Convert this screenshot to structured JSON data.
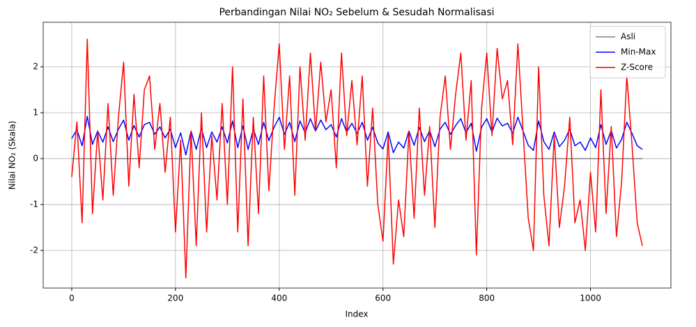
{
  "chart_data": {
    "type": "line",
    "title": "Perbandingan Nilai NO₂ Sebelum & Sesudah Normalisasi",
    "xlabel": "Index",
    "ylabel": "Nilai NO₂ (Skala)",
    "x": [
      0,
      10,
      20,
      30,
      40,
      50,
      60,
      70,
      80,
      90,
      100,
      110,
      120,
      130,
      140,
      150,
      160,
      170,
      180,
      190,
      200,
      210,
      220,
      230,
      240,
      250,
      260,
      270,
      280,
      290,
      300,
      310,
      320,
      330,
      340,
      350,
      360,
      370,
      380,
      390,
      400,
      410,
      420,
      430,
      440,
      450,
      460,
      470,
      480,
      490,
      500,
      510,
      520,
      530,
      540,
      550,
      560,
      570,
      580,
      590,
      600,
      610,
      620,
      630,
      640,
      650,
      660,
      670,
      680,
      690,
      700,
      710,
      720,
      730,
      740,
      750,
      760,
      770,
      780,
      790,
      800,
      810,
      820,
      830,
      840,
      850,
      860,
      870,
      880,
      890,
      900,
      910,
      920,
      930,
      940,
      950,
      960,
      970,
      980,
      990,
      1000,
      1010,
      1020,
      1030,
      1040,
      1050,
      1060,
      1070,
      1080,
      1090,
      1100
    ],
    "series": [
      {
        "name": "Asli",
        "color": "#808080",
        "values": [
          0,
          0,
          0,
          0,
          0,
          0,
          0,
          0,
          0,
          0,
          0,
          0,
          0,
          0,
          0,
          0,
          0,
          0,
          0,
          0,
          0,
          0,
          0,
          0,
          0,
          0,
          0,
          0,
          0,
          0,
          0,
          0,
          0,
          0,
          0,
          0,
          0,
          0,
          0,
          0,
          0,
          0,
          0,
          0,
          0,
          0,
          0,
          0,
          0,
          0,
          0,
          0,
          0,
          0,
          0,
          0,
          0,
          0,
          0,
          0,
          0,
          0,
          0,
          0,
          0,
          0,
          0,
          0,
          0,
          0,
          0,
          0,
          0,
          0,
          0,
          0,
          0,
          0,
          0,
          0,
          0,
          0,
          0,
          0,
          0,
          0,
          0,
          0,
          0,
          0,
          0,
          0,
          0,
          0,
          0,
          0,
          0,
          0,
          0,
          0,
          0,
          0,
          0,
          0,
          0,
          0,
          0,
          0,
          0,
          0,
          0
        ]
      },
      {
        "name": "Min-Max",
        "color": "#0000ff",
        "values": [
          0.44,
          0.63,
          0.28,
          0.92,
          0.31,
          0.6,
          0.36,
          0.69,
          0.37,
          0.64,
          0.84,
          0.4,
          0.72,
          0.47,
          0.74,
          0.79,
          0.53,
          0.69,
          0.45,
          0.64,
          0.24,
          0.56,
          0.08,
          0.6,
          0.2,
          0.66,
          0.24,
          0.58,
          0.36,
          0.69,
          0.34,
          0.82,
          0.24,
          0.71,
          0.2,
          0.64,
          0.31,
          0.79,
          0.39,
          0.68,
          0.9,
          0.53,
          0.79,
          0.37,
          0.82,
          0.56,
          0.87,
          0.6,
          0.84,
          0.63,
          0.74,
          0.47,
          0.87,
          0.58,
          0.77,
          0.55,
          0.79,
          0.4,
          0.68,
          0.34,
          0.21,
          0.58,
          0.13,
          0.36,
          0.23,
          0.6,
          0.29,
          0.68,
          0.37,
          0.61,
          0.26,
          0.64,
          0.79,
          0.53,
          0.72,
          0.87,
          0.56,
          0.77,
          0.16,
          0.68,
          0.87,
          0.58,
          0.88,
          0.71,
          0.77,
          0.55,
          0.9,
          0.6,
          0.29,
          0.18,
          0.82,
          0.37,
          0.2,
          0.58,
          0.26,
          0.4,
          0.64,
          0.28,
          0.36,
          0.18,
          0.45,
          0.24,
          0.74,
          0.31,
          0.61,
          0.23,
          0.42,
          0.79,
          0.55,
          0.28,
          0.2
        ]
      },
      {
        "name": "Z-Score",
        "color": "#ff0000",
        "values": [
          -0.4,
          0.8,
          -1.4,
          2.6,
          -1.2,
          0.6,
          -0.9,
          1.2,
          -0.8,
          0.9,
          2.1,
          -0.6,
          1.4,
          -0.2,
          1.5,
          1.8,
          0.2,
          1.2,
          -0.3,
          0.9,
          -1.6,
          0.4,
          -2.6,
          0.6,
          -1.9,
          1.0,
          -1.6,
          0.5,
          -0.9,
          1.2,
          -1.0,
          2.0,
          -1.6,
          1.3,
          -1.9,
          0.9,
          -1.2,
          1.8,
          -0.7,
          1.1,
          2.5,
          0.2,
          1.8,
          -0.8,
          2.0,
          0.4,
          2.3,
          0.6,
          2.1,
          0.8,
          1.5,
          -0.2,
          2.3,
          0.5,
          1.7,
          0.3,
          1.8,
          -0.6,
          1.1,
          -1.0,
          -1.8,
          0.5,
          -2.3,
          -0.9,
          -1.7,
          0.6,
          -1.3,
          1.1,
          -0.8,
          0.7,
          -1.5,
          0.9,
          1.8,
          0.2,
          1.4,
          2.3,
          0.4,
          1.7,
          -2.1,
          1.1,
          2.3,
          0.5,
          2.4,
          1.3,
          1.7,
          0.3,
          2.5,
          0.6,
          -1.3,
          -2.0,
          2.0,
          -0.8,
          -1.9,
          0.5,
          -1.5,
          -0.6,
          0.9,
          -1.4,
          -0.9,
          -2.0,
          -0.3,
          -1.6,
          1.5,
          -1.2,
          0.7,
          -1.7,
          -0.5,
          1.8,
          0.3,
          -1.4,
          -1.9
        ]
      }
    ],
    "xlim": [
      -55,
      1155
    ],
    "ylim": [
      -2.82,
      2.97
    ],
    "xticks": [
      0,
      200,
      400,
      600,
      800,
      1000
    ],
    "yticks": [
      -2,
      -1,
      0,
      1,
      2
    ],
    "grid": true,
    "legend": "upper right"
  }
}
